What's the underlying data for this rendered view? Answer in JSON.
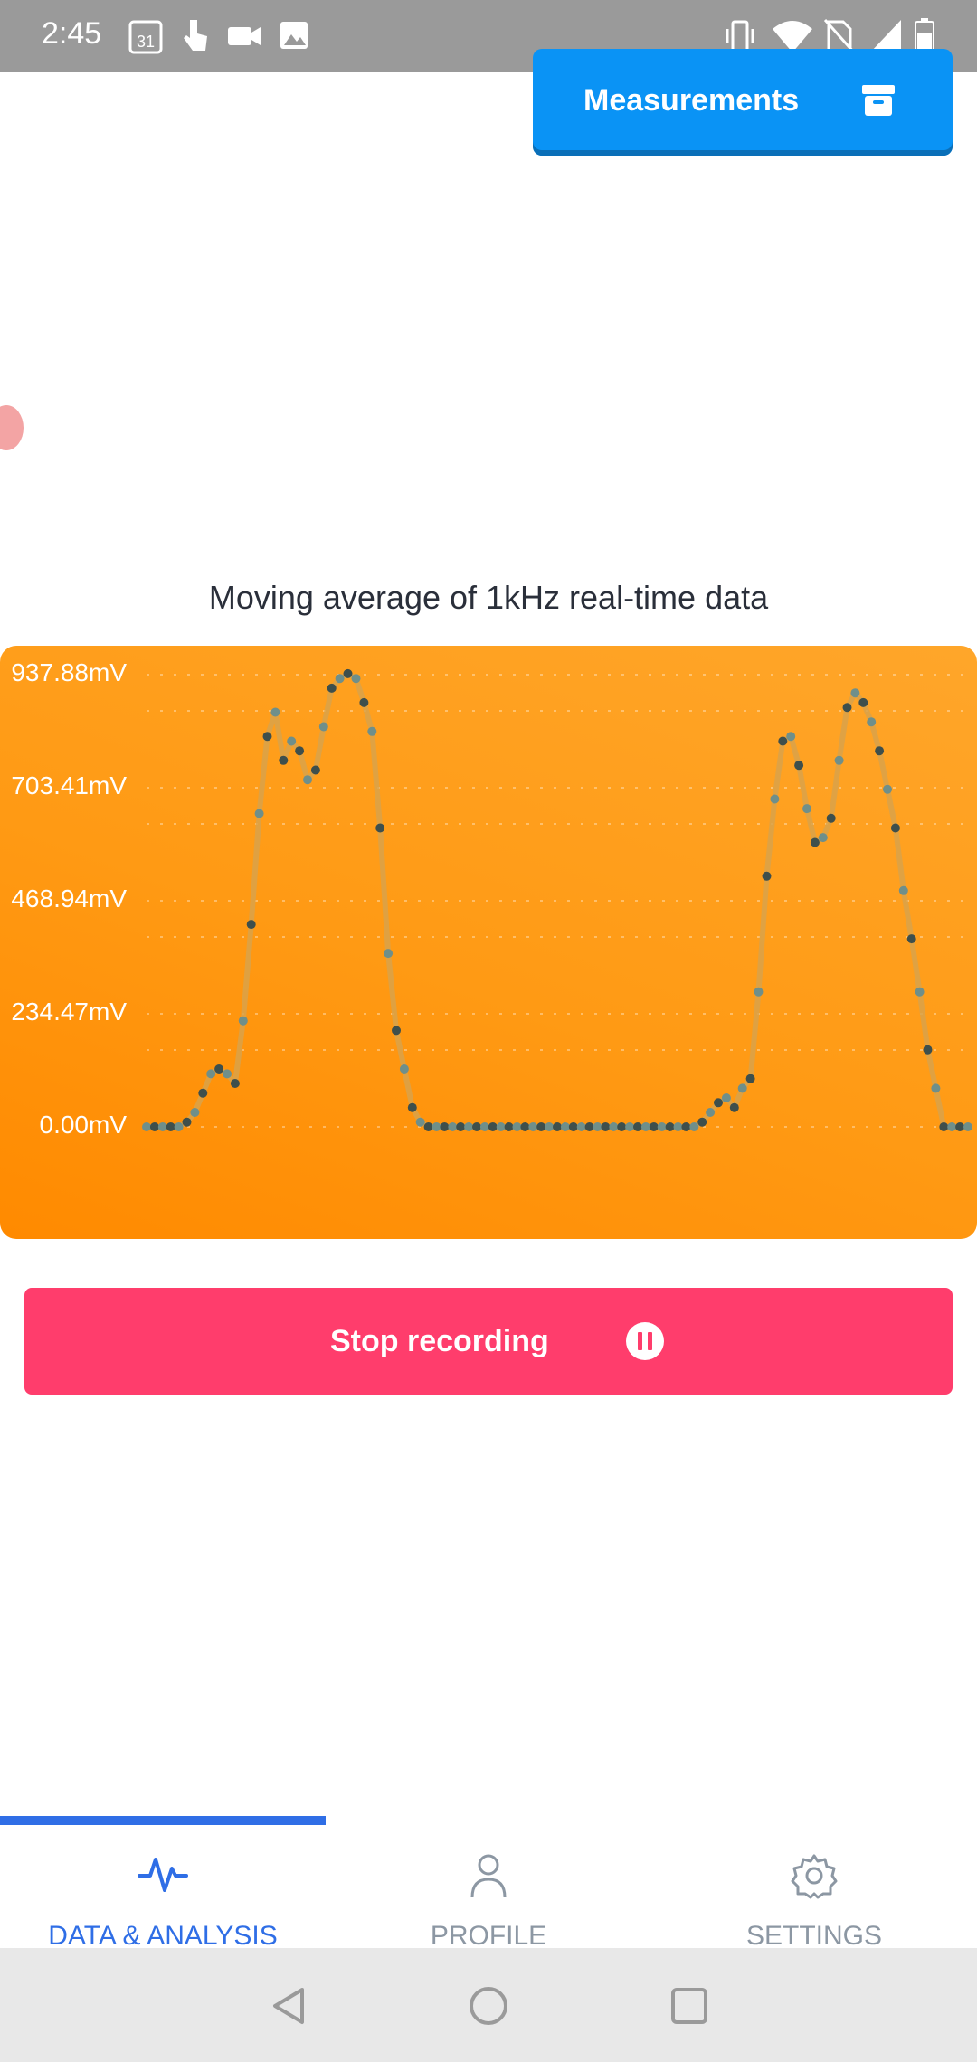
{
  "status_bar": {
    "time": "2:45",
    "calendar_day": "31",
    "icons_left": [
      "calendar-icon",
      "touch-icon",
      "video-icon",
      "image-icon"
    ],
    "icons_right": [
      "vibrate-icon",
      "wifi-icon",
      "no-sim-icon",
      "signal-icon",
      "battery-icon"
    ]
  },
  "header": {
    "measurements_label": "Measurements",
    "measurements_icon": "archive-icon",
    "accent_color": "#0a93f5"
  },
  "chart": {
    "title": "Moving average of 1kHz real-time data",
    "background_color": "#ff9a14",
    "chart_data": {
      "type": "line",
      "title": "Moving average of 1kHz real-time data",
      "ylim": [
        0,
        937.88
      ],
      "y_ticks": [
        "937.88mV",
        "703.41mV",
        "468.94mV",
        "234.47mV",
        "0.00mV"
      ],
      "y_tick_values": [
        937.88,
        703.41,
        468.94,
        234.47,
        0.0
      ],
      "grid": true,
      "series": [
        {
          "values": [
            0,
            0,
            0,
            0,
            0,
            10,
            30,
            70,
            110,
            120,
            110,
            90,
            220,
            420,
            650,
            810,
            860,
            760,
            800,
            780,
            720,
            740,
            830,
            910,
            930,
            940,
            930,
            880,
            820,
            620,
            360,
            200,
            120,
            40,
            10,
            0,
            0,
            0,
            0,
            0,
            0,
            0,
            0,
            0,
            0,
            0,
            0,
            0,
            0,
            0,
            0,
            0,
            0,
            0,
            0,
            0,
            0,
            0,
            0,
            0,
            0,
            0,
            0,
            0,
            0,
            0,
            0,
            0,
            0,
            10,
            30,
            50,
            60,
            40,
            80,
            100,
            280,
            520,
            680,
            800,
            810,
            750,
            660,
            590,
            600,
            640,
            760,
            870,
            900,
            880,
            840,
            780,
            700,
            620,
            490,
            390,
            280,
            160,
            80,
            0,
            0,
            0,
            0
          ]
        }
      ]
    }
  },
  "stop_button": {
    "label": "Stop recording",
    "icon": "pause-icon",
    "color": "#ff3d6c"
  },
  "bottom_nav": {
    "items": [
      {
        "label": "DATA & ANALYSIS",
        "icon": "activity-icon",
        "active": true
      },
      {
        "label": "PROFILE",
        "icon": "user-icon",
        "active": false
      },
      {
        "label": "SETTINGS",
        "icon": "gear-icon",
        "active": false
      }
    ],
    "active_color": "#2f6ee6"
  },
  "system_nav": {
    "buttons": [
      "back-icon",
      "home-icon",
      "recents-icon"
    ]
  }
}
